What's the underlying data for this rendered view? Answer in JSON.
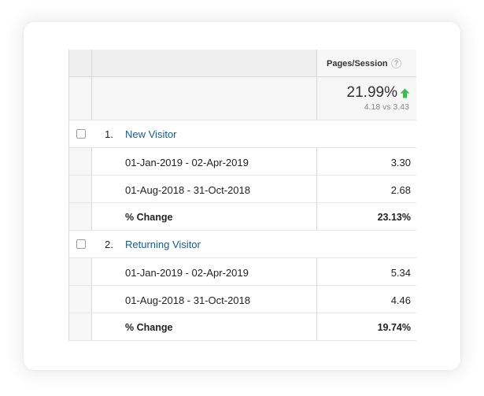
{
  "header": {
    "metric_label": "Pages/Session",
    "help_icon": "?"
  },
  "summary": {
    "value": "21.99%",
    "trend_icon": "arrow-up-icon",
    "trend_color": "#3cba54",
    "comparison": "4.18 vs 3.43"
  },
  "groups": [
    {
      "index": "1.",
      "name": "New Visitor",
      "rows": [
        {
          "label": "01-Jan-2019 - 02-Apr-2019",
          "value": "3.30"
        },
        {
          "label": "01-Aug-2018 - 31-Oct-2018",
          "value": "2.68"
        },
        {
          "label": "% Change",
          "value": "23.13%"
        }
      ]
    },
    {
      "index": "2.",
      "name": "Returning Visitor",
      "rows": [
        {
          "label": "01-Jan-2019 - 02-Apr-2019",
          "value": "5.34"
        },
        {
          "label": "01-Aug-2018 - 31-Oct-2018",
          "value": "4.46"
        },
        {
          "label": "% Change",
          "value": "19.74%"
        }
      ]
    }
  ],
  "colors": {
    "link": "#1a5a96",
    "header_bg": "#efefef"
  }
}
